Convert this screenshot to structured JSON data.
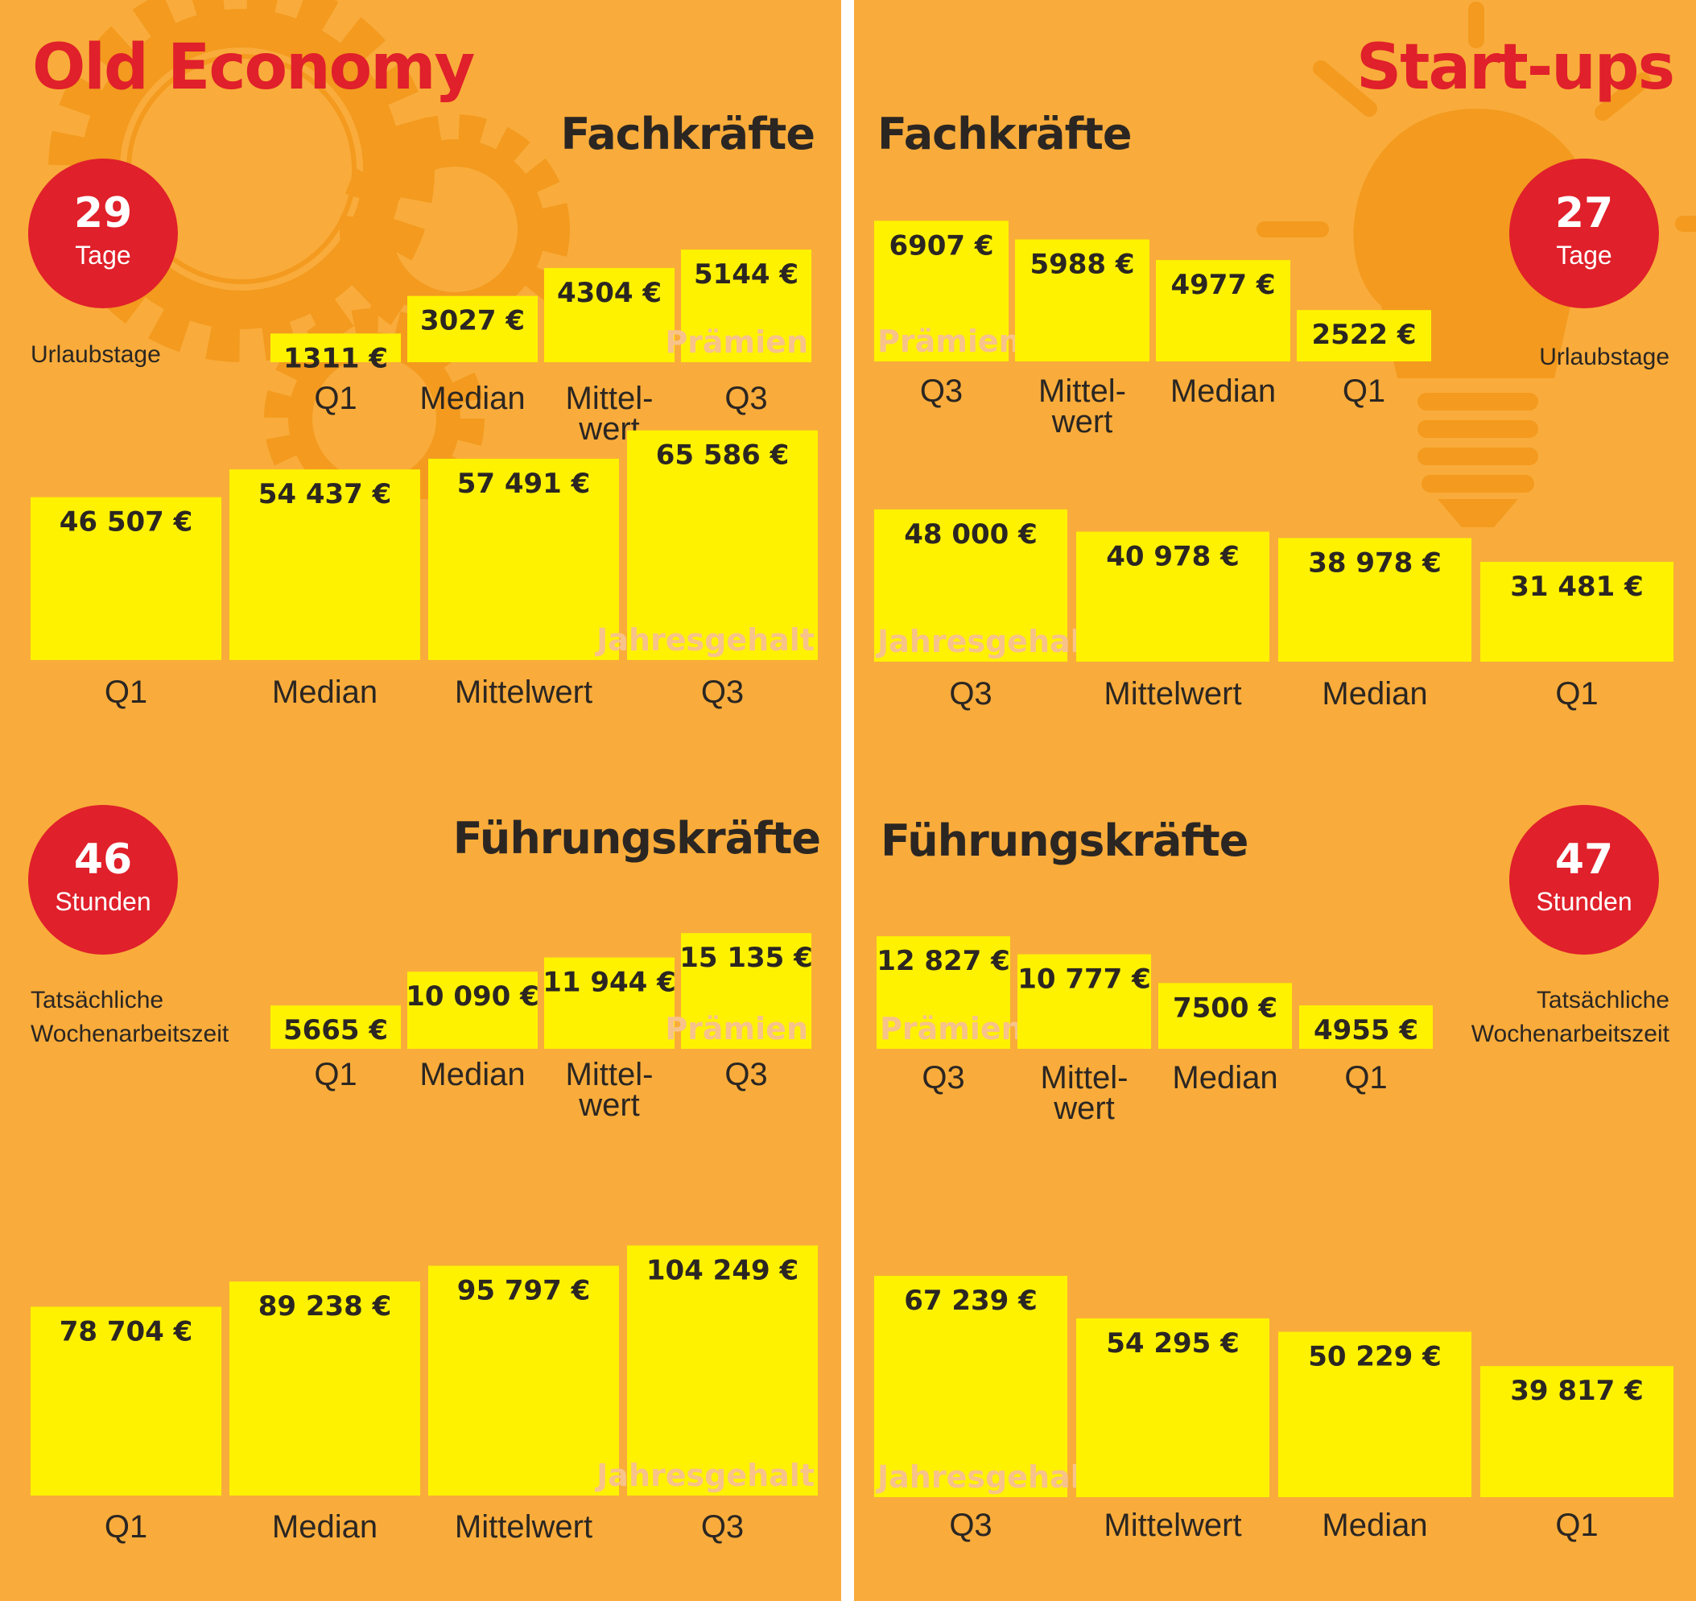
{
  "colors": {
    "background": "#f9ac3b",
    "bar": "#fff200",
    "accent_red": "#e0202a",
    "text_dark": "#2b2622",
    "watermark": "#f7c38a",
    "decor_orange": "#f39a1f"
  },
  "left": {
    "title": "Old Economy",
    "decor_icon": "gears-icon",
    "fach_title": "Fachkräfte",
    "fuehr_title": "Führungskräfte",
    "vacation": {
      "value": "29",
      "unit": "Tage",
      "label": "Urlaubstage"
    },
    "hours": {
      "value": "46",
      "unit": "Stunden",
      "label_line1": "Tatsächliche",
      "label_line2": "Wochenarbeitszeit"
    }
  },
  "right": {
    "title": "Start-ups",
    "decor_icon": "lightbulb-icon",
    "fach_title": "Fachkräfte",
    "fuehr_title": "Führungskräfte",
    "vacation": {
      "value": "27",
      "unit": "Tage",
      "label": "Urlaubstage"
    },
    "hours": {
      "value": "47",
      "unit": "Stunden",
      "label_line1": "Tatsächliche",
      "label_line2": "Wochenarbeitszeit"
    }
  },
  "chart_data": [
    {
      "id": "oe-fach-praemien",
      "type": "bar",
      "panel": "Old Economy",
      "group": "Fachkräfte",
      "series_label": "Prämien",
      "categories": [
        "Q1",
        "Median",
        "Mittel-\nwert",
        "Q3"
      ],
      "values": [
        1311,
        3027,
        4304,
        5144
      ],
      "value_labels": [
        "1311 €",
        "3027 €",
        "4304 €",
        "5144 €"
      ]
    },
    {
      "id": "oe-fach-gehalt",
      "type": "bar",
      "panel": "Old Economy",
      "group": "Fachkräfte",
      "series_label": "Jahresgehalt",
      "categories": [
        "Q1",
        "Median",
        "Mittelwert",
        "Q3"
      ],
      "values": [
        46507,
        54437,
        57491,
        65586
      ],
      "value_labels": [
        "46 507 €",
        "54 437 €",
        "57 491 €",
        "65 586 €"
      ]
    },
    {
      "id": "oe-fuehr-praemien",
      "type": "bar",
      "panel": "Old Economy",
      "group": "Führungskräfte",
      "series_label": "Prämien",
      "categories": [
        "Q1",
        "Median",
        "Mittel-\nwert",
        "Q3"
      ],
      "values": [
        5665,
        10090,
        11944,
        15135
      ],
      "value_labels": [
        "5665 €",
        "10 090 €",
        "11 944 €",
        "15 135 €"
      ]
    },
    {
      "id": "oe-fuehr-gehalt",
      "type": "bar",
      "panel": "Old Economy",
      "group": "Führungskräfte",
      "series_label": "Jahresgehalt",
      "categories": [
        "Q1",
        "Median",
        "Mittelwert",
        "Q3"
      ],
      "values": [
        78704,
        89238,
        95797,
        104249
      ],
      "value_labels": [
        "78 704 €",
        "89 238 €",
        "95 797 €",
        "104 249 €"
      ]
    },
    {
      "id": "su-fach-praemien",
      "type": "bar",
      "panel": "Start-ups",
      "group": "Fachkräfte",
      "series_label": "Prämien",
      "categories": [
        "Q3",
        "Mittel-\nwert",
        "Median",
        "Q1"
      ],
      "values": [
        6907,
        5988,
        4977,
        2522
      ],
      "value_labels": [
        "6907 €",
        "5988 €",
        "4977 €",
        "2522 €"
      ]
    },
    {
      "id": "su-fach-gehalt",
      "type": "bar",
      "panel": "Start-ups",
      "group": "Fachkräfte",
      "series_label": "Jahresgehalt",
      "categories": [
        "Q3",
        "Mittelwert",
        "Median",
        "Q1"
      ],
      "values": [
        48000,
        40978,
        38978,
        31481
      ],
      "value_labels": [
        "48 000 €",
        "40 978 €",
        "38 978 €",
        "31 481 €"
      ]
    },
    {
      "id": "su-fuehr-praemien",
      "type": "bar",
      "panel": "Start-ups",
      "group": "Führungskräfte",
      "series_label": "Prämien",
      "categories": [
        "Q3",
        "Mittel-\nwert",
        "Median",
        "Q1"
      ],
      "values": [
        12827,
        10777,
        7500,
        4955
      ],
      "value_labels": [
        "12 827 €",
        "10 777 €",
        "7500 €",
        "4955 €"
      ]
    },
    {
      "id": "su-fuehr-gehalt",
      "type": "bar",
      "panel": "Start-ups",
      "group": "Führungskräfte",
      "series_label": "Jahresgehalt",
      "categories": [
        "Q3",
        "Mittelwert",
        "Median",
        "Q1"
      ],
      "values": [
        67239,
        54295,
        50229,
        39817
      ],
      "value_labels": [
        "67 239 €",
        "54 295 €",
        "50 229 €",
        "39 817 €"
      ]
    }
  ]
}
